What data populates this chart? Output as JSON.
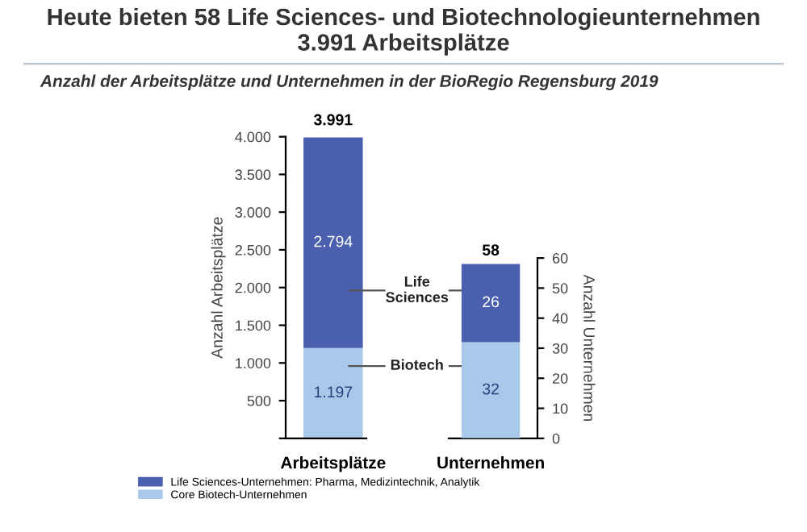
{
  "chart_data": [
    {
      "type": "bar",
      "title": "Heute bieten 58 Life Sciences- und Biotechnologieunternehmen\n3.991 Arbeitsplätze",
      "subtitle": "Anzahl der Arbeitsplätze und Unternehmen in der BioRegio Regensburg 2019",
      "ylabel": "Anzahl Arbeitsplätze",
      "categories": [
        "Arbeitsplätze"
      ],
      "stacked": true,
      "series": [
        {
          "name": "Core Biotech-Unternehmen",
          "color": "#a9c9ea",
          "values": [
            1197
          ],
          "value_labels": [
            "1.197"
          ]
        },
        {
          "name": "Life Sciences-Unternehmen: Pharma, Medizintechnik, Analytik",
          "color": "#4a5fae",
          "values": [
            2794
          ],
          "value_labels": [
            "2.794"
          ]
        }
      ],
      "totals": [
        "3.991"
      ],
      "ylim": [
        0,
        4000
      ],
      "yticks": [
        {
          "value": 0,
          "label": null
        },
        {
          "value": 500,
          "label": "500"
        },
        {
          "value": 1000,
          "label": "1.000"
        },
        {
          "value": 1500,
          "label": "1.500"
        },
        {
          "value": 2000,
          "label": "2.000"
        },
        {
          "value": 2500,
          "label": "2.500"
        },
        {
          "value": 3000,
          "label": "3.000"
        },
        {
          "value": 3500,
          "label": "3.500"
        },
        {
          "value": 4000,
          "label": "4.000"
        }
      ],
      "annotations": [
        "Life\nSciences",
        "Biotech"
      ],
      "legend": "bottom left",
      "grid": false
    },
    {
      "type": "bar",
      "y2label": "Anzahl Unternehmen",
      "categories": [
        "Unternehmen"
      ],
      "stacked": true,
      "series": [
        {
          "color": "#a9c9ea",
          "values": [
            32
          ],
          "value_labels": [
            "32"
          ],
          "axis": "y2"
        },
        {
          "color": "#4a5fae",
          "values": [
            26
          ],
          "value_labels": [
            "26"
          ],
          "axis": "y2"
        }
      ],
      "totals": [
        "58"
      ],
      "y2lim": [
        0,
        60
      ],
      "y2ticks": [
        0,
        10,
        20,
        30,
        40,
        50,
        60
      ],
      "grid": false
    }
  ]
}
